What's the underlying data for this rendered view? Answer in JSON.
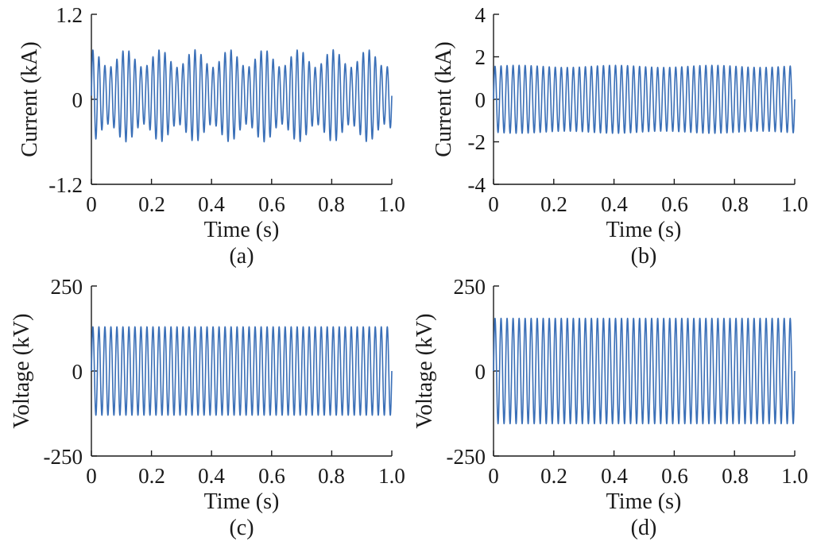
{
  "chart_data": [
    {
      "type": "line",
      "caption": "(a)",
      "xlabel": "Time (s)",
      "ylabel": "Current (kA)",
      "xlim": [
        0,
        1.0
      ],
      "ylim": [
        -1.2,
        1.2
      ],
      "xticks": [
        "0",
        "0.2",
        "0.4",
        "0.6",
        "0.8",
        "1.0"
      ],
      "yticks": [
        "-1.2",
        "0",
        "1.2"
      ],
      "grid": false,
      "color": "#3a6fb7",
      "series": [
        {
          "waveform": "sinusoid-with-beat",
          "frequency_hz": 50,
          "offset": 0.05,
          "amplitude_min": 0.4,
          "amplitude_max": 0.65,
          "envelope_period_s": 0.115,
          "peak_max": 0.67,
          "trough_min": -0.58,
          "x_start": 0,
          "x_end": 1.0
        }
      ]
    },
    {
      "type": "line",
      "caption": "(b)",
      "xlabel": "Time (s)",
      "ylabel": "Current (kA)",
      "xlim": [
        0,
        1.0
      ],
      "ylim": [
        -4,
        4
      ],
      "xticks": [
        "0",
        "0.2",
        "0.4",
        "0.6",
        "0.8",
        "1.0"
      ],
      "yticks": [
        "-4",
        "-2",
        "0",
        "2",
        "4"
      ],
      "grid": false,
      "color": "#3a6fb7",
      "series": [
        {
          "waveform": "sinusoid",
          "frequency_hz": 50,
          "offset": 0,
          "amplitude": 1.55,
          "amplitude_ripple": 0.05,
          "peak_max": 1.65,
          "trough_min": -1.6,
          "x_start": 0,
          "x_end": 1.0
        }
      ]
    },
    {
      "type": "line",
      "caption": "(c)",
      "xlabel": "Time (s)",
      "ylabel": "Voltage (kV)",
      "xlim": [
        0,
        1.0
      ],
      "ylim": [
        -250,
        250
      ],
      "xticks": [
        "0",
        "0.2",
        "0.4",
        "0.6",
        "0.8",
        "1.0"
      ],
      "yticks": [
        "-250",
        "0",
        "250"
      ],
      "grid": false,
      "color": "#3a6fb7",
      "series": [
        {
          "waveform": "sinusoid",
          "frequency_hz": 50,
          "offset": 0,
          "amplitude": 130,
          "x_start": 0,
          "x_end": 1.0
        }
      ]
    },
    {
      "type": "line",
      "caption": "(d)",
      "xlabel": "Time (s)",
      "ylabel": "Voltage (kV)",
      "xlim": [
        0,
        1.0
      ],
      "ylim": [
        -250,
        250
      ],
      "xticks": [
        "0",
        "0.2",
        "0.4",
        "0.6",
        "0.8",
        "1.0"
      ],
      "yticks": [
        "-250",
        "0",
        "250"
      ],
      "grid": false,
      "color": "#3a6fb7",
      "series": [
        {
          "waveform": "sinusoid",
          "frequency_hz": 50,
          "offset": 0,
          "amplitude": 155,
          "x_start": 0,
          "x_end": 1.0
        }
      ]
    }
  ]
}
